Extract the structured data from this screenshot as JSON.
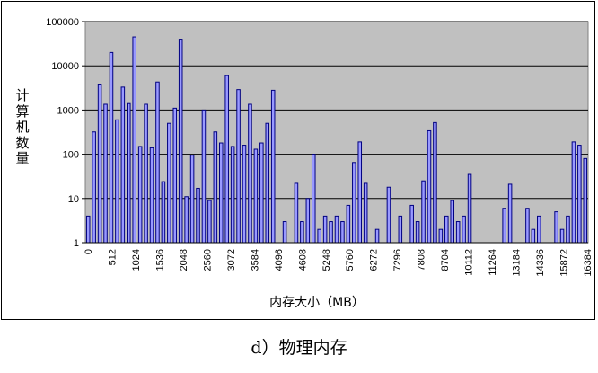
{
  "chart_data": {
    "type": "bar",
    "ylabel": "计算机数量",
    "xlabel": "内存大小（MB）",
    "yscale": "log",
    "ylim": [
      1,
      100000
    ],
    "ytick_labels": [
      "1",
      "10",
      "100",
      "1000",
      "10000",
      "100000"
    ],
    "xtick_labels": [
      "0",
      "512",
      "1024",
      "1536",
      "2048",
      "2560",
      "3072",
      "3584",
      "4096",
      "4608",
      "5248",
      "5760",
      "6272",
      "7296",
      "7808",
      "8704",
      "10112",
      "11264",
      "13184",
      "14336",
      "15872",
      "16384"
    ],
    "plot_background": "#c0c0c0",
    "bar_fill": "#9999ff",
    "bar_stroke": "#000080",
    "grid": true,
    "values": [
      4,
      320,
      3700,
      1350,
      20000,
      600,
      3300,
      1400,
      45000,
      150,
      1350,
      140,
      4300,
      24,
      500,
      1100,
      40000,
      11,
      95,
      17,
      1000,
      9,
      320,
      180,
      6000,
      150,
      2900,
      160,
      1350,
      130,
      180,
      500,
      2800,
      1,
      3,
      1,
      22,
      3,
      10,
      100,
      2,
      4,
      3,
      4,
      3,
      7,
      65,
      190,
      22,
      1,
      2,
      1,
      18,
      1,
      4,
      1,
      7,
      3,
      25,
      340,
      520,
      2,
      4,
      9,
      3,
      4,
      35,
      1,
      1,
      1,
      1,
      1,
      6,
      21,
      1,
      1,
      6,
      2,
      4,
      1,
      1,
      5,
      2,
      4,
      190,
      160,
      80
    ]
  },
  "caption": "d）物理内存"
}
